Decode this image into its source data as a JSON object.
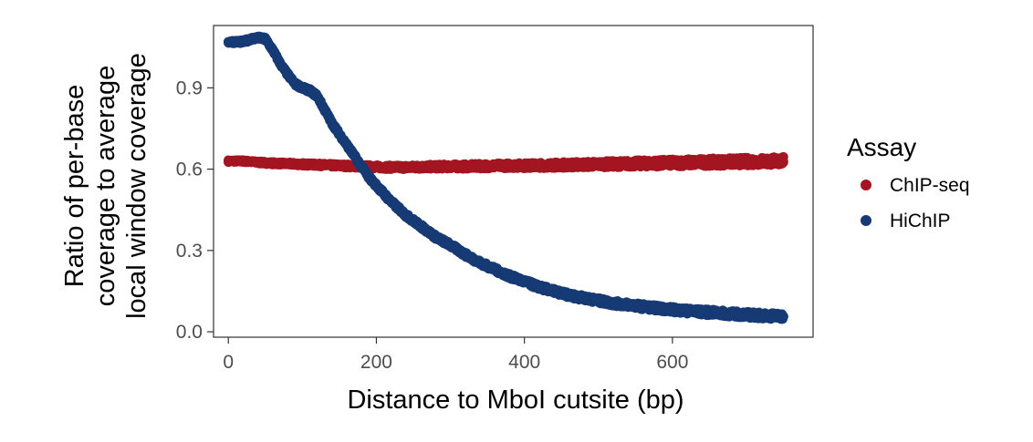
{
  "chart_data": {
    "type": "scatter",
    "title": "",
    "xlabel": "Distance to MboI cutsite (bp)",
    "ylabel_lines": [
      "Ratio of per-base",
      "coverage to average",
      "local window coverage"
    ],
    "xlim": [
      -20,
      790
    ],
    "ylim": [
      -0.02,
      1.13
    ],
    "x_ticks": [
      0,
      200,
      400,
      600
    ],
    "y_ticks": [
      0.0,
      0.3,
      0.6,
      0.9
    ],
    "y_tick_labels": [
      "0.0",
      "0.3",
      "0.6",
      "0.9"
    ],
    "grid": false,
    "legend": {
      "title": "Assay",
      "position": "right"
    },
    "series": [
      {
        "name": "ChIP-seq",
        "color": "#A31621",
        "x": [
          0,
          20,
          40,
          60,
          80,
          100,
          120,
          140,
          160,
          180,
          200,
          220,
          240,
          260,
          280,
          300,
          320,
          340,
          360,
          380,
          400,
          420,
          440,
          460,
          480,
          500,
          520,
          540,
          560,
          580,
          600,
          620,
          640,
          660,
          680,
          700,
          720,
          740,
          750
        ],
        "y": [
          0.63,
          0.63,
          0.625,
          0.622,
          0.62,
          0.618,
          0.616,
          0.614,
          0.612,
          0.61,
          0.608,
          0.607,
          0.607,
          0.608,
          0.609,
          0.61,
          0.61,
          0.611,
          0.612,
          0.613,
          0.613,
          0.614,
          0.615,
          0.616,
          0.617,
          0.618,
          0.619,
          0.62,
          0.621,
          0.622,
          0.623,
          0.624,
          0.625,
          0.626,
          0.627,
          0.628,
          0.629,
          0.63,
          0.63
        ]
      },
      {
        "name": "HiChIP",
        "color": "#163A74",
        "x": [
          0,
          10,
          20,
          30,
          40,
          50,
          60,
          70,
          80,
          90,
          100,
          110,
          120,
          130,
          140,
          150,
          160,
          170,
          180,
          190,
          200,
          220,
          240,
          260,
          280,
          300,
          320,
          340,
          360,
          380,
          400,
          420,
          440,
          460,
          480,
          500,
          520,
          540,
          560,
          580,
          600,
          620,
          640,
          660,
          680,
          700,
          720,
          740,
          750
        ],
        "y": [
          1.07,
          1.07,
          1.07,
          1.08,
          1.085,
          1.08,
          1.04,
          0.99,
          0.95,
          0.915,
          0.9,
          0.89,
          0.87,
          0.82,
          0.77,
          0.73,
          0.69,
          0.65,
          0.61,
          0.57,
          0.54,
          0.48,
          0.43,
          0.39,
          0.35,
          0.32,
          0.285,
          0.255,
          0.23,
          0.205,
          0.185,
          0.165,
          0.15,
          0.135,
          0.125,
          0.115,
          0.105,
          0.1,
          0.093,
          0.087,
          0.082,
          0.077,
          0.073,
          0.07,
          0.066,
          0.063,
          0.06,
          0.058,
          0.057
        ]
      }
    ]
  }
}
